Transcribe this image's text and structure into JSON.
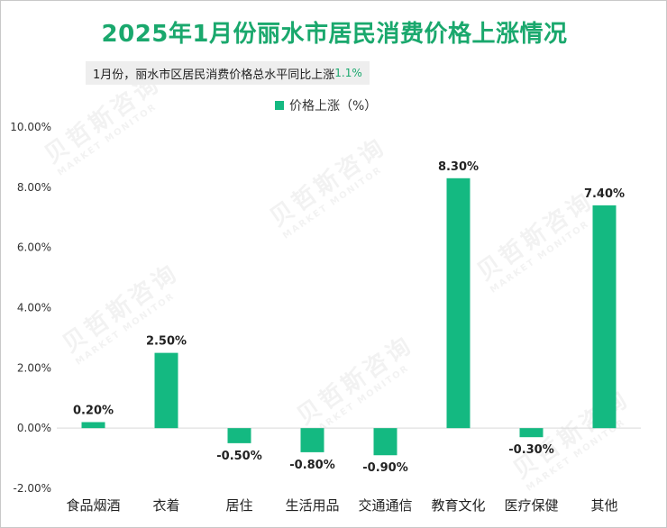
{
  "title": "2025年1月份丽水市居民消费价格上涨情况",
  "subtitle": {
    "text": "1月份，丽水市区居民消费价格总水平同比上涨",
    "value": "1.1%"
  },
  "watermark": {
    "cn": "贝哲斯咨询",
    "en": "MARKET MONITOR"
  },
  "colors": {
    "bar": "#14b981",
    "title": "#1aa86d"
  },
  "chart_data": {
    "type": "bar",
    "title": "2025年1月份丽水市居民消费价格上涨情况",
    "xlabel": "",
    "ylabel": "",
    "ylim": [
      -2.0,
      10.0
    ],
    "yticks": [
      "10.00%",
      "8.00%",
      "6.00%",
      "4.00%",
      "2.00%",
      "0.00%",
      "-2.00%"
    ],
    "categories": [
      "食品烟酒",
      "衣着",
      "居住",
      "生活用品",
      "交通通信",
      "教育文化",
      "医疗保健",
      "其他"
    ],
    "series": [
      {
        "name": "价格上涨（%）",
        "values": [
          0.2,
          2.5,
          -0.5,
          -0.8,
          -0.9,
          8.3,
          -0.3,
          7.4
        ],
        "labels": [
          "0.20%",
          "2.50%",
          "-0.50%",
          "-0.80%",
          "-0.90%",
          "8.30%",
          "-0.30%",
          "7.40%"
        ]
      }
    ],
    "grid": false,
    "legend": "top-center"
  }
}
